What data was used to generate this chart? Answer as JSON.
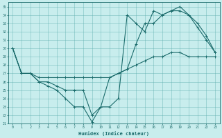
{
  "xlabel": "Humidex (Indice chaleur)",
  "bg_color": "#c8eded",
  "line_color": "#1a6b6b",
  "grid_color": "#5aabab",
  "xlim": [
    -0.5,
    23.5
  ],
  "ylim": [
    21,
    35.5
  ],
  "yticks": [
    21,
    22,
    23,
    24,
    25,
    26,
    27,
    28,
    29,
    30,
    31,
    32,
    33,
    34,
    35
  ],
  "xticks": [
    0,
    1,
    2,
    3,
    4,
    5,
    6,
    7,
    8,
    9,
    10,
    11,
    12,
    13,
    14,
    15,
    16,
    17,
    18,
    19,
    20,
    21,
    22,
    23
  ],
  "series1_x": [
    0,
    1,
    2,
    3,
    4,
    5,
    6,
    7,
    8,
    9,
    10,
    11,
    12,
    13,
    14,
    15,
    16,
    17,
    18,
    19,
    20,
    21,
    22,
    23
  ],
  "series1_y": [
    30,
    27,
    27,
    26,
    25.5,
    25,
    24,
    23,
    23,
    21.2,
    23,
    23,
    24,
    34,
    33,
    32,
    34.5,
    34,
    34.5,
    35,
    34,
    32.5,
    31,
    29.5
  ],
  "series2_x": [
    0,
    1,
    2,
    3,
    4,
    5,
    6,
    7,
    8,
    9,
    10,
    11,
    12,
    13,
    14,
    15,
    16,
    17,
    18,
    19,
    20,
    21,
    22,
    23
  ],
  "series2_y": [
    30,
    27,
    27,
    26,
    26,
    25.5,
    25,
    25,
    25,
    22,
    23,
    26.5,
    27,
    27.5,
    30.5,
    33,
    33,
    34,
    34.5,
    34.5,
    34,
    33,
    31.5,
    29.5
  ],
  "series3_x": [
    0,
    1,
    2,
    3,
    4,
    5,
    6,
    7,
    8,
    9,
    10,
    11,
    12,
    13,
    14,
    15,
    16,
    17,
    18,
    19,
    20,
    21,
    22,
    23
  ],
  "series3_y": [
    30,
    27,
    27,
    26.5,
    26.5,
    26.5,
    26.5,
    26.5,
    26.5,
    26.5,
    26.5,
    26.5,
    27,
    27.5,
    28,
    28.5,
    29,
    29,
    29.5,
    29.5,
    29,
    29,
    29,
    29
  ]
}
